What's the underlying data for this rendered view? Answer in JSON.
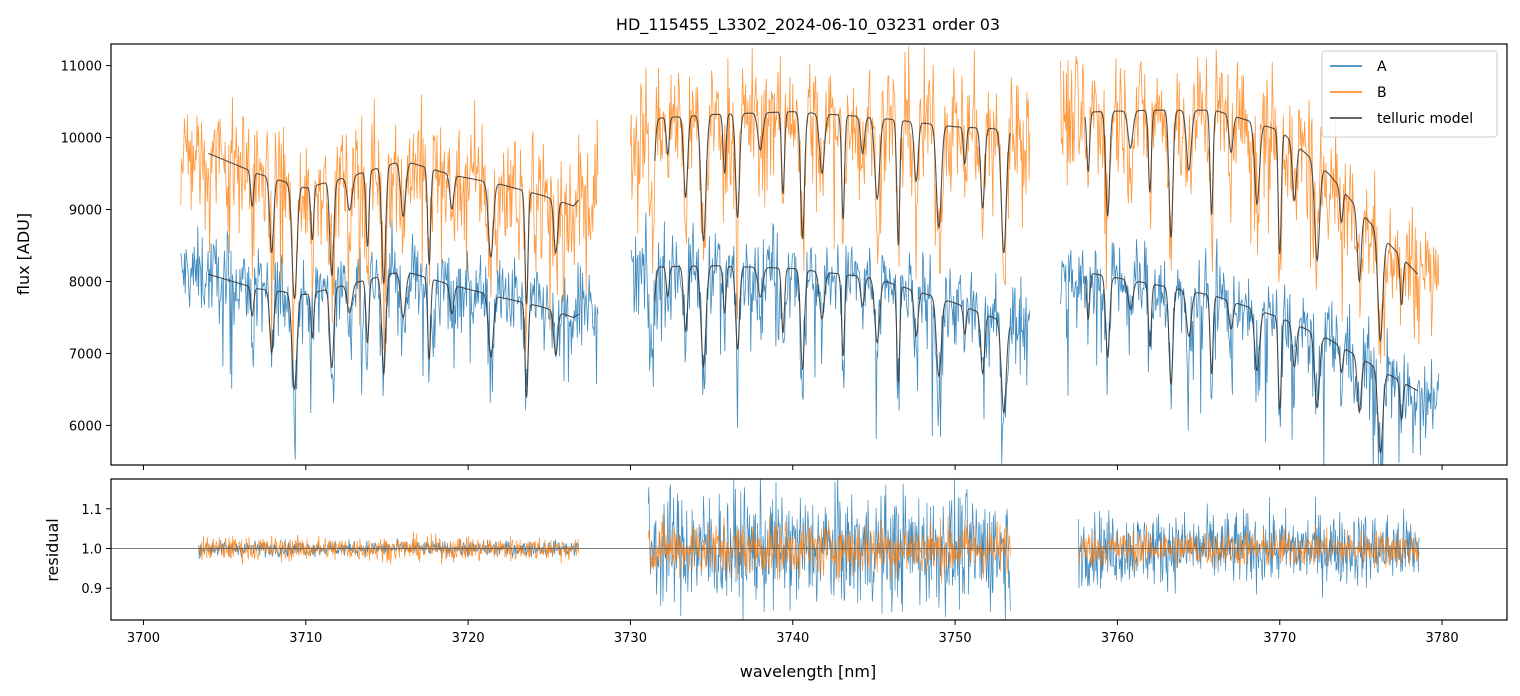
{
  "chart_data": [
    {
      "panel": "top",
      "type": "line",
      "title": "HD_115455_L3302_2024-06-10_03231  order 03",
      "xlabel": "",
      "ylabel": "flux [ADU]",
      "xlim": [
        3698.0,
        3784.0
      ],
      "ylim": [
        5450,
        11300
      ],
      "yticks": [
        6000,
        7000,
        8000,
        9000,
        10000,
        11000
      ],
      "xticks": [
        3700,
        3710,
        3720,
        3730,
        3740,
        3750,
        3760,
        3770,
        3780
      ],
      "grid": false,
      "legend_position": "top-right",
      "legend": [
        "A",
        "B",
        "telluric model"
      ],
      "colors": {
        "A": "#1f77b4",
        "B": "#ff7f0e",
        "telluric model": "#333333"
      },
      "segments": [
        {
          "x_start": 3702.3,
          "x_end": 3728.0,
          "A_level": 7750,
          "B_level": 9300
        },
        {
          "x_start": 3730.0,
          "x_end": 3754.6,
          "A_level": 7700,
          "B_level": 9800
        },
        {
          "x_start": 3756.5,
          "x_end": 3779.8,
          "A_level": 7400,
          "B_level": 9400
        }
      ],
      "series": [
        {
          "name": "telluric model (B)",
          "x": [
            3704,
            3707,
            3710,
            3713,
            3716,
            3719,
            3722,
            3724.5,
            3726.5,
            3731,
            3735,
            3740,
            3745,
            3750,
            3753.5,
            3757.5,
            3762,
            3766,
            3770,
            3773,
            3776,
            3778.5
          ],
          "values": [
            9780,
            9500,
            9300,
            9480,
            9680,
            9480,
            9350,
            9200,
            9050,
            10260,
            10320,
            10360,
            10280,
            10150,
            10110,
            10350,
            10380,
            10380,
            10100,
            9500,
            8700,
            8100
          ]
        },
        {
          "name": "telluric model (A)",
          "x": [
            3704,
            3707,
            3710,
            3713,
            3716,
            3719,
            3722,
            3724.5,
            3726.5,
            3731,
            3735,
            3740,
            3745,
            3750,
            3753.5,
            3757.5,
            3762,
            3766,
            3770,
            3773,
            3776,
            3778.5
          ],
          "values": [
            8100,
            7900,
            7820,
            7980,
            8150,
            7950,
            7780,
            7650,
            7500,
            8200,
            8220,
            8180,
            8050,
            7700,
            7400,
            8150,
            7970,
            7800,
            7500,
            7200,
            6800,
            6480
          ]
        }
      ]
    },
    {
      "panel": "bottom",
      "type": "line",
      "xlabel": "wavelength [nm]",
      "ylabel": "residual",
      "xlim": [
        3698.0,
        3784.0
      ],
      "ylim": [
        0.82,
        1.175
      ],
      "yticks": [
        0.9,
        1.0,
        1.1
      ],
      "yticklabels": [
        "0.9",
        "1.0",
        "1.1"
      ],
      "xticks": [
        3700,
        3710,
        3720,
        3730,
        3740,
        3750,
        3760,
        3770,
        3780
      ],
      "reference_line": 1.0,
      "segments": [
        {
          "x_start": 3703.4,
          "x_end": 3726.8,
          "A_spread": 0.025,
          "B_spread": 0.04
        },
        {
          "x_start": 3731.1,
          "x_end": 3753.4,
          "A_spread": 0.19,
          "B_spread": 0.09
        },
        {
          "x_start": 3757.6,
          "x_end": 3778.6,
          "A_spread": 0.12,
          "B_spread": 0.06
        }
      ]
    }
  ]
}
